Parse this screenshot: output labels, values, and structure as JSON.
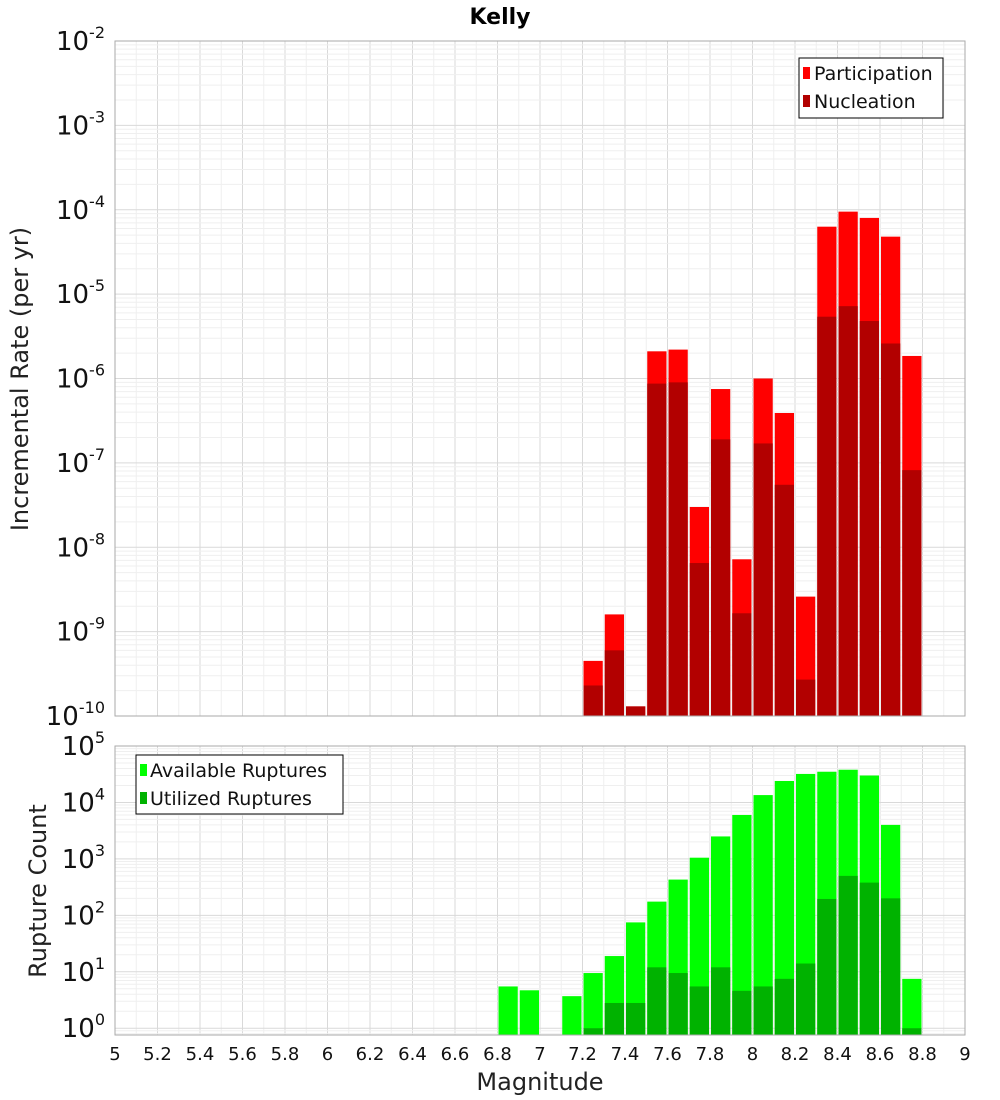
{
  "title": "Kelly",
  "chart_data": [
    {
      "type": "bar",
      "ylabel": "Incremental Rate (per yr)",
      "xlabel": "",
      "y_scale": "log",
      "xlim": [
        5,
        9
      ],
      "ylim_exp": [
        -10,
        -2
      ],
      "grid": true,
      "legend_position": "top-right",
      "y_ticks": [
        {
          "base": "10",
          "exp": "-2"
        },
        {
          "base": "10",
          "exp": "-3"
        },
        {
          "base": "10",
          "exp": "-4"
        },
        {
          "base": "10",
          "exp": "-5"
        },
        {
          "base": "10",
          "exp": "-6"
        },
        {
          "base": "10",
          "exp": "-7"
        },
        {
          "base": "10",
          "exp": "-8"
        },
        {
          "base": "10",
          "exp": "-9"
        },
        {
          "base": "10",
          "exp": "-10"
        }
      ],
      "series": [
        {
          "name": "Participation",
          "color": "#ff0000",
          "points": [
            [
              7.25,
              4.5e-10
            ],
            [
              7.35,
              1.6e-09
            ],
            [
              7.45,
              1.3e-10
            ],
            [
              7.55,
              2.1e-06
            ],
            [
              7.65,
              2.2e-06
            ],
            [
              7.75,
              3e-08
            ],
            [
              7.85,
              7.5e-07
            ],
            [
              7.95,
              7.2e-09
            ],
            [
              8.05,
              1e-06
            ],
            [
              8.15,
              3.9e-07
            ],
            [
              8.25,
              2.6e-09
            ],
            [
              8.35,
              6.3e-05
            ],
            [
              8.45,
              9.5e-05
            ],
            [
              8.55,
              8e-05
            ],
            [
              8.65,
              4.8e-05
            ],
            [
              8.75,
              1.85e-06
            ]
          ]
        },
        {
          "name": "Nucleation",
          "color": "#b20000",
          "points": [
            [
              7.25,
              2.3e-10
            ],
            [
              7.35,
              6e-10
            ],
            [
              7.45,
              1.3e-10
            ],
            [
              7.55,
              8.7e-07
            ],
            [
              7.65,
              9e-07
            ],
            [
              7.75,
              6.5e-09
            ],
            [
              7.85,
              1.9e-07
            ],
            [
              7.95,
              1.65e-09
            ],
            [
              8.05,
              1.7e-07
            ],
            [
              8.15,
              5.5e-08
            ],
            [
              8.25,
              2.7e-10
            ],
            [
              8.35,
              5.4e-06
            ],
            [
              8.45,
              7.2e-06
            ],
            [
              8.55,
              4.8e-06
            ],
            [
              8.65,
              2.6e-06
            ],
            [
              8.75,
              8.2e-08
            ]
          ]
        }
      ]
    },
    {
      "type": "bar",
      "ylabel": "Rupture Count",
      "xlabel": "Magnitude",
      "y_scale": "log",
      "xlim": [
        5,
        9
      ],
      "ylim_exp": [
        -0.12,
        5
      ],
      "grid": true,
      "legend_position": "top-left",
      "x_ticks": [
        "5",
        "5.2",
        "5.4",
        "5.6",
        "5.8",
        "6",
        "6.2",
        "6.4",
        "6.6",
        "6.8",
        "7",
        "7.2",
        "7.4",
        "7.6",
        "7.8",
        "8",
        "8.2",
        "8.4",
        "8.6",
        "8.8",
        "9"
      ],
      "y_ticks": [
        {
          "base": "10",
          "exp": "5"
        },
        {
          "base": "10",
          "exp": "4"
        },
        {
          "base": "10",
          "exp": "3"
        },
        {
          "base": "10",
          "exp": "2"
        },
        {
          "base": "10",
          "exp": "1"
        },
        {
          "base": "10",
          "exp": "0"
        }
      ],
      "series": [
        {
          "name": "Available Ruptures",
          "color": "#00ff00",
          "points": [
            [
              6.85,
              5.5
            ],
            [
              6.95,
              4.7
            ],
            [
              7.15,
              3.7
            ],
            [
              7.25,
              9.5
            ],
            [
              7.35,
              19
            ],
            [
              7.45,
              75
            ],
            [
              7.55,
              175
            ],
            [
              7.65,
              430
            ],
            [
              7.75,
              1050
            ],
            [
              7.85,
              2500
            ],
            [
              7.95,
              6000
            ],
            [
              8.05,
              13500
            ],
            [
              8.15,
              24000
            ],
            [
              8.25,
              32000
            ],
            [
              8.35,
              35000
            ],
            [
              8.45,
              38000
            ],
            [
              8.55,
              30000
            ],
            [
              8.65,
              4000
            ],
            [
              8.75,
              7.5
            ]
          ]
        },
        {
          "name": "Utilized Ruptures",
          "color": "#00b200",
          "points": [
            [
              7.25,
              1
            ],
            [
              7.35,
              2.8
            ],
            [
              7.45,
              2.8
            ],
            [
              7.55,
              12
            ],
            [
              7.65,
              9.5
            ],
            [
              7.75,
              5.5
            ],
            [
              7.85,
              12
            ],
            [
              7.95,
              4.6
            ],
            [
              8.05,
              5.5
            ],
            [
              8.15,
              7.5
            ],
            [
              8.25,
              14
            ],
            [
              8.35,
              195
            ],
            [
              8.45,
              500
            ],
            [
              8.55,
              380
            ],
            [
              8.65,
              200
            ],
            [
              8.75,
              1
            ]
          ]
        }
      ]
    }
  ]
}
